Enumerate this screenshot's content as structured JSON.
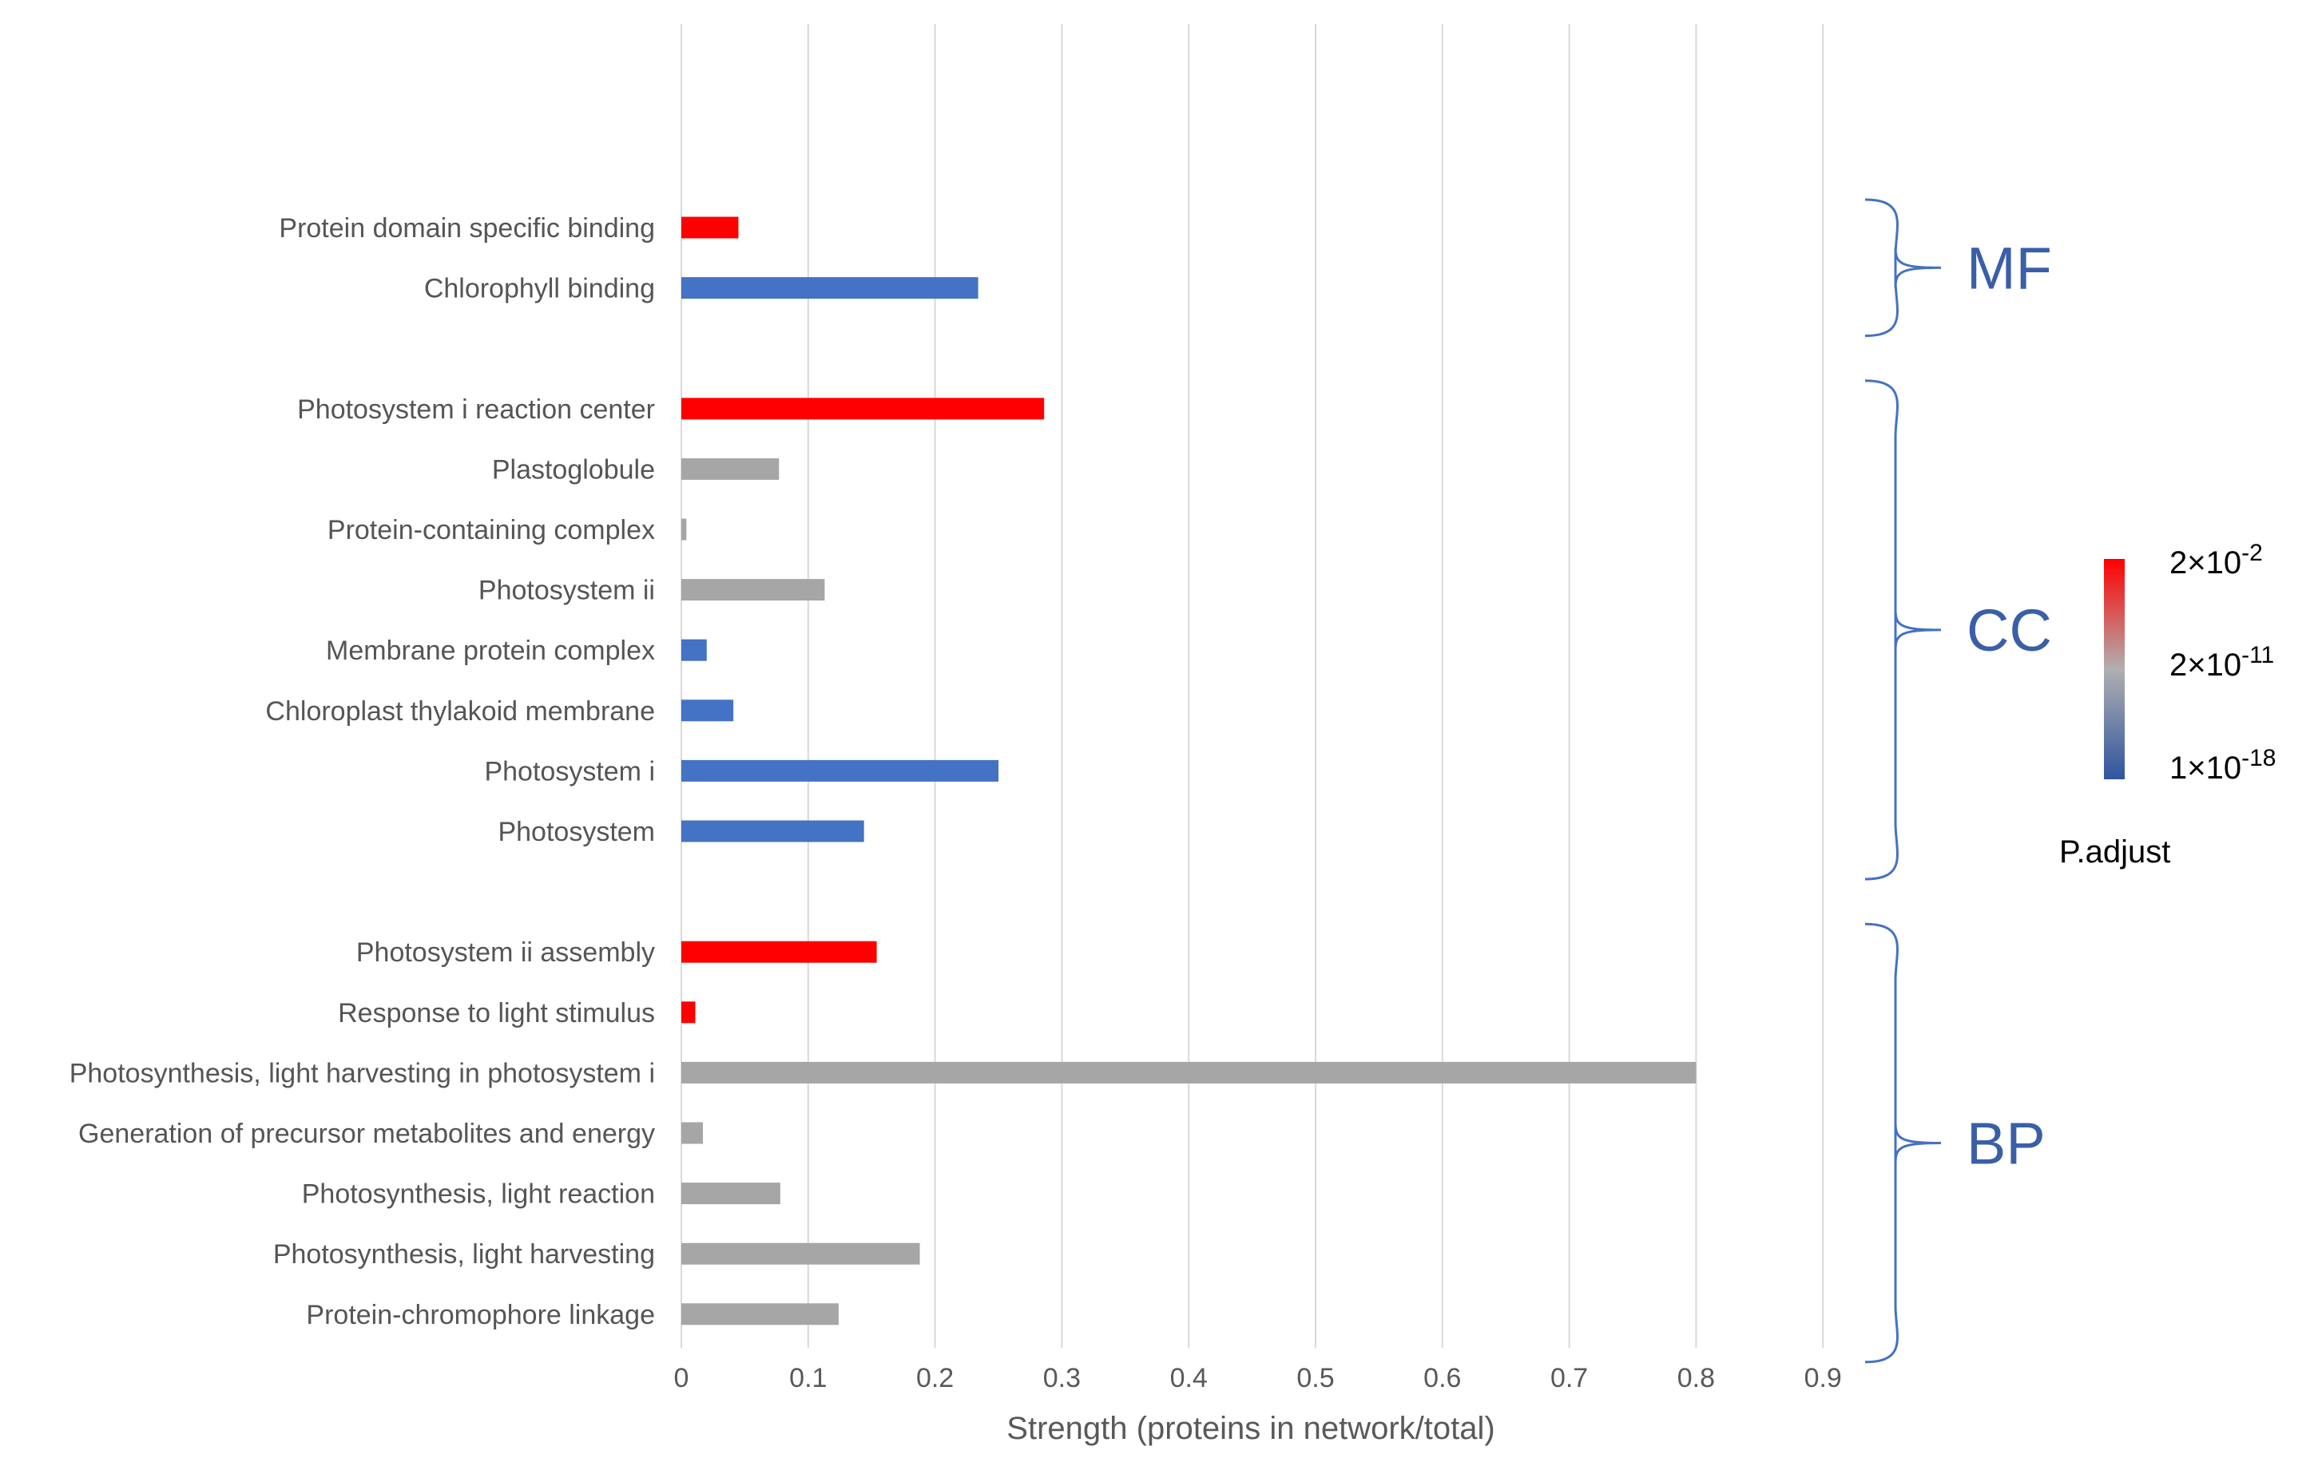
{
  "chart_data": {
    "type": "bar",
    "orientation": "horizontal",
    "xlabel": "Strength (proteins in network/total)",
    "xlim": [
      0,
      0.9
    ],
    "xticks": [
      "0",
      "0.1",
      "0.2",
      "0.3",
      "0.4",
      "0.5",
      "0.6",
      "0.7",
      "0.8",
      "0.9"
    ],
    "grid": "vertical",
    "colors": {
      "red": "#ff0000",
      "gray": "#a6a6a6",
      "blue": "#4472c4"
    },
    "groups": [
      {
        "name": "MF",
        "bars": [
          {
            "label": "Protein domain specific binding",
            "value": 0.045,
            "color": "red"
          },
          {
            "label": "Chlorophyll binding",
            "value": 0.234,
            "color": "blue"
          }
        ]
      },
      {
        "name": "CC",
        "bars": [
          {
            "label": "Photosystem i reaction center",
            "value": 0.286,
            "color": "red"
          },
          {
            "label": "Plastoglobule",
            "value": 0.077,
            "color": "gray"
          },
          {
            "label": "Protein-containing complex",
            "value": 0.004,
            "color": "gray"
          },
          {
            "label": "Photosystem ii",
            "value": 0.113,
            "color": "gray"
          },
          {
            "label": "Membrane protein complex",
            "value": 0.02,
            "color": "blue"
          },
          {
            "label": "Chloroplast thylakoid membrane",
            "value": 0.041,
            "color": "blue"
          },
          {
            "label": "Photosystem i",
            "value": 0.25,
            "color": "blue"
          },
          {
            "label": "Photosystem",
            "value": 0.144,
            "color": "blue"
          }
        ]
      },
      {
        "name": "BP",
        "bars": [
          {
            "label": "Photosystem ii assembly",
            "value": 0.154,
            "color": "red"
          },
          {
            "label": "Response to light stimulus",
            "value": 0.011,
            "color": "red"
          },
          {
            "label": "Photosynthesis, light harvesting in photosystem i",
            "value": 0.8,
            "color": "gray"
          },
          {
            "label": "Generation of precursor metabolites and energy",
            "value": 0.017,
            "color": "gray"
          },
          {
            "label": "Photosynthesis, light reaction",
            "value": 0.078,
            "color": "gray"
          },
          {
            "label": "Photosynthesis, light harvesting",
            "value": 0.188,
            "color": "gray"
          },
          {
            "label": "Protein-chromophore linkage",
            "value": 0.124,
            "color": "gray"
          }
        ]
      }
    ],
    "legend": {
      "title": "P.adjust",
      "ticks": [
        {
          "base": "2×10",
          "exp": "-2"
        },
        {
          "base": "2×10",
          "exp": "-11"
        },
        {
          "base": "1×10",
          "exp": "-18"
        }
      ],
      "gradient": [
        "#ff0000",
        "#b0b0b0",
        "#2f54a0"
      ]
    }
  }
}
